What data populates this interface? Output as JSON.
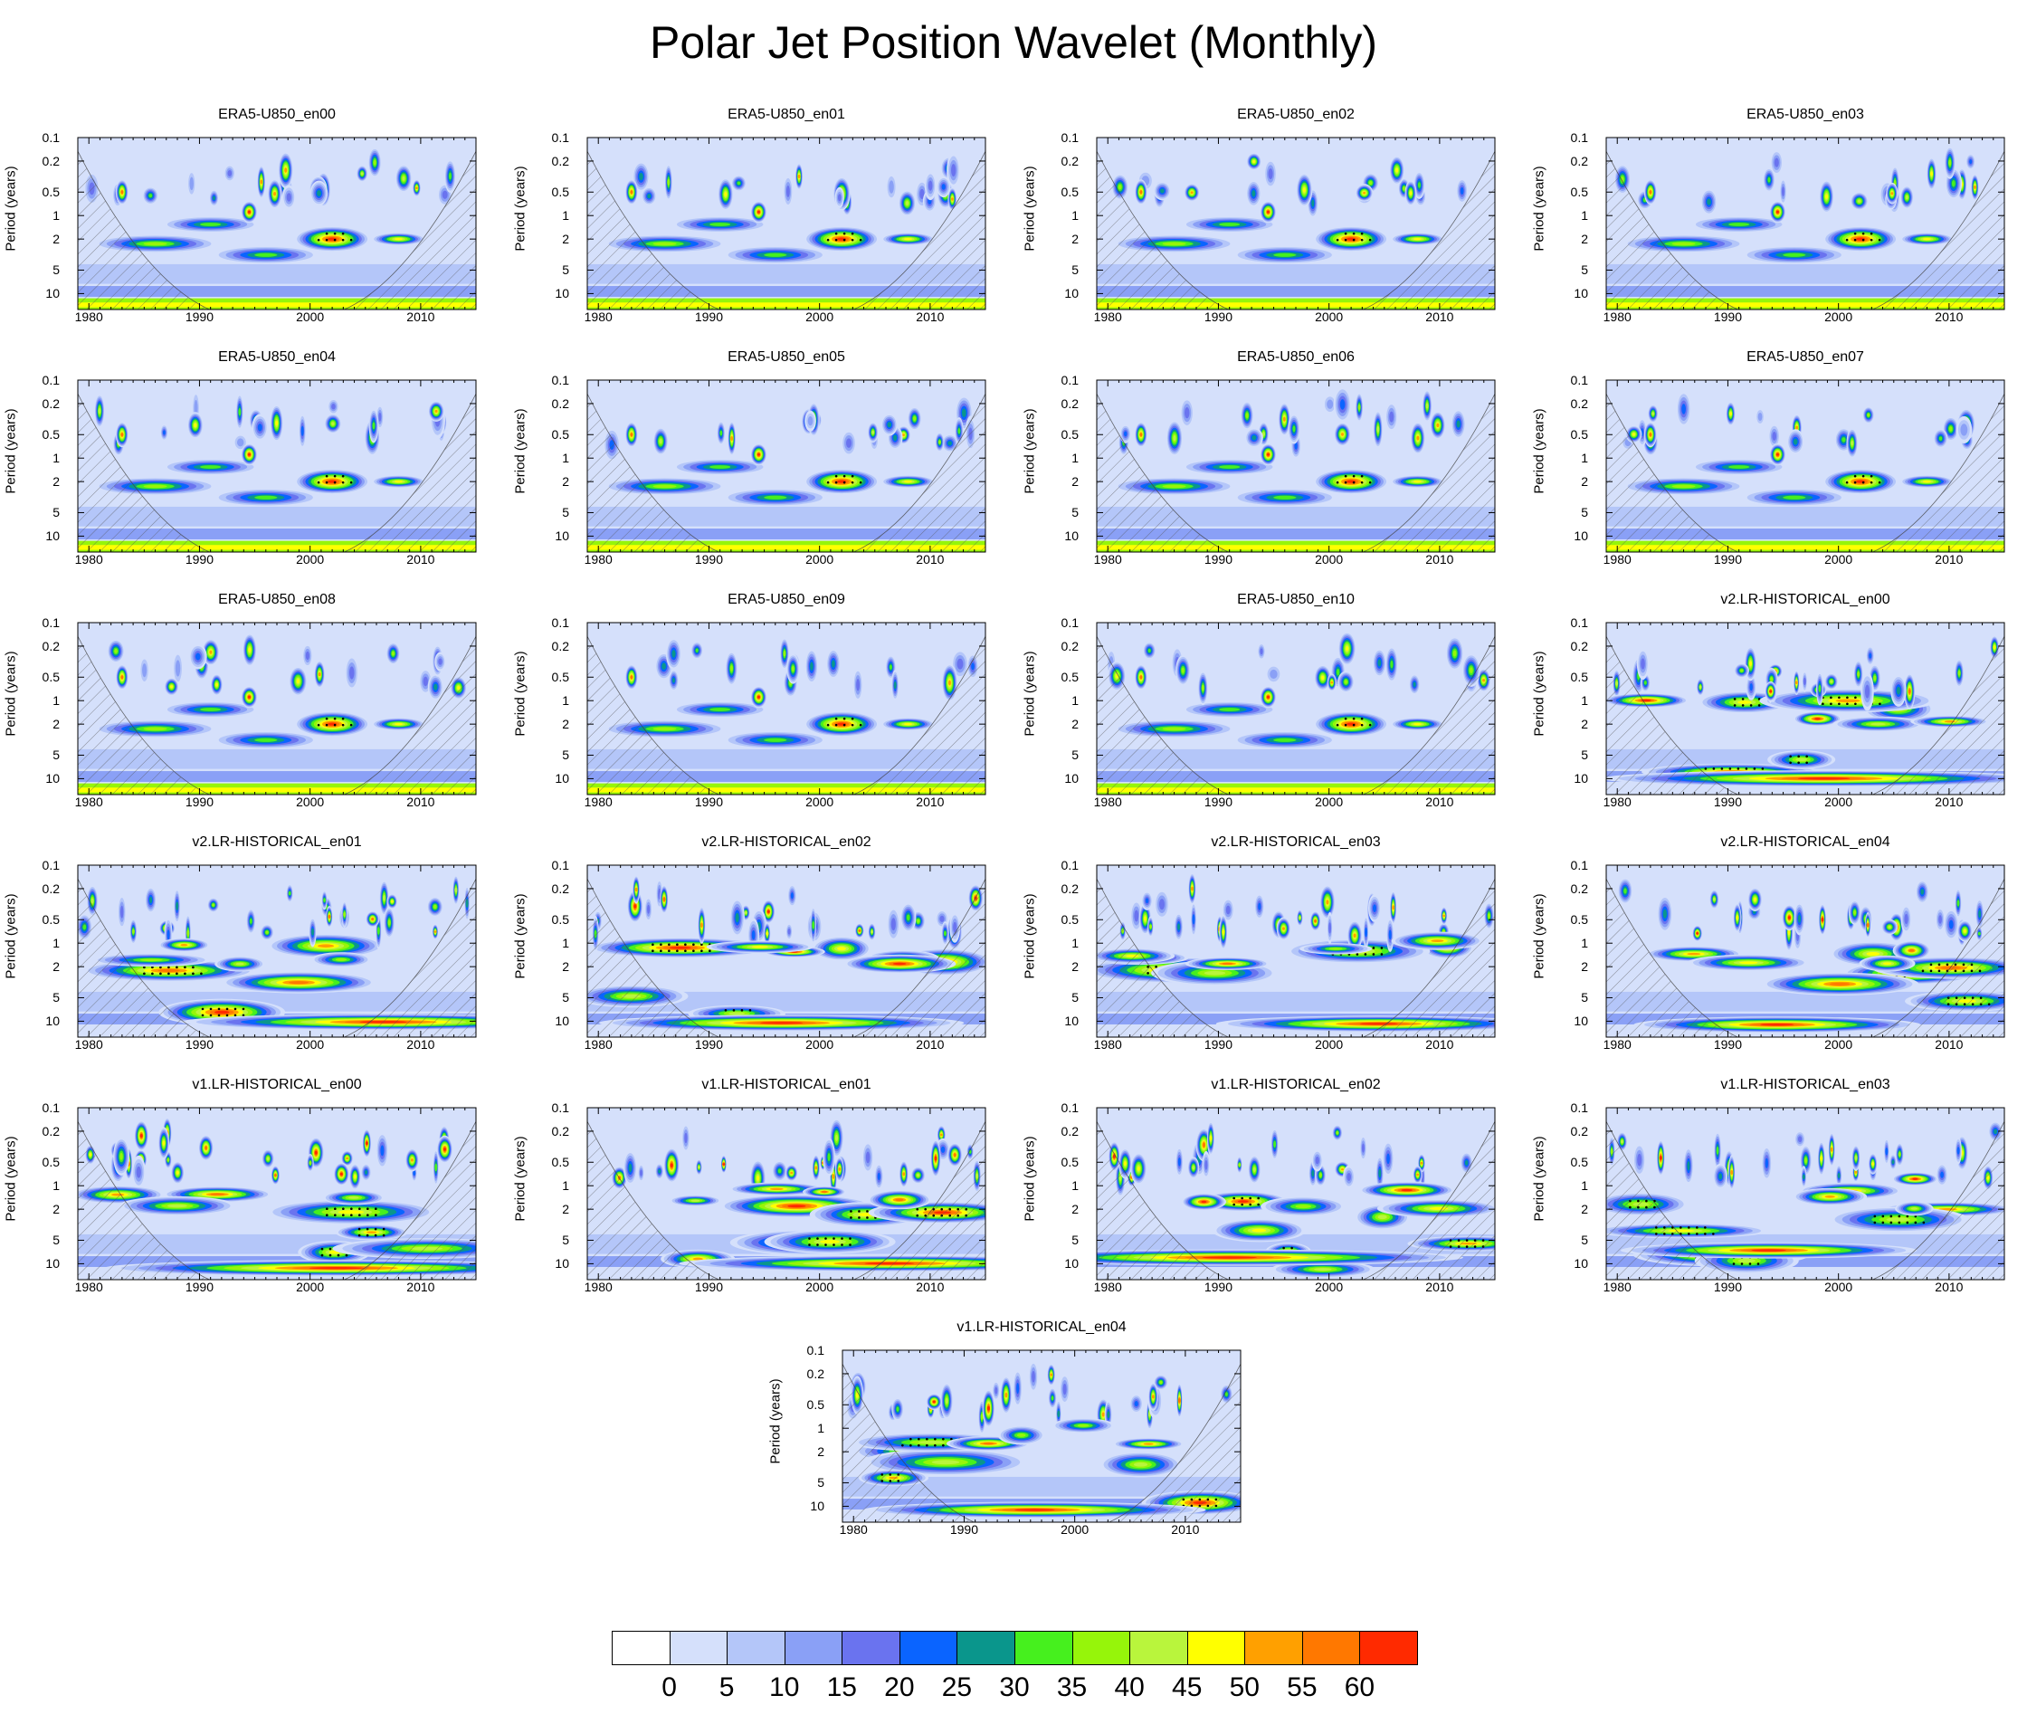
{
  "title": "Polar Jet Position Wavelet (Monthly)",
  "y_axis_label": "Period (years)",
  "y_ticks": [
    "0.1",
    "0.2",
    "0.5",
    "1",
    "2",
    "5",
    "10"
  ],
  "x_ticks": [
    "1980",
    "1990",
    "2000",
    "2010"
  ],
  "colorbar": {
    "labels": [
      "0",
      "5",
      "10",
      "15",
      "20",
      "25",
      "30",
      "35",
      "40",
      "45",
      "50",
      "55",
      "60"
    ],
    "colors": [
      "#ffffff",
      "#d5e0fb",
      "#b4c6f9",
      "#8aa0f6",
      "#6a73ef",
      "#0a64ff",
      "#0a968c",
      "#46f01e",
      "#96f50a",
      "#b9f53c",
      "#ffff00",
      "#ffa000",
      "#ff7800",
      "#ff2a00"
    ]
  },
  "chart_data": [
    {
      "type": "heatmap",
      "title": "ERA5-U850_en00",
      "family": "era5",
      "variant": 0,
      "ylabel": "Period (years)",
      "xlim": [
        1979,
        2015
      ],
      "ylim": [
        0.1,
        16
      ],
      "y_scale": "log"
    },
    {
      "type": "heatmap",
      "title": "ERA5-U850_en01",
      "family": "era5",
      "variant": 1,
      "ylabel": "Period (years)",
      "xlim": [
        1979,
        2015
      ],
      "ylim": [
        0.1,
        16
      ],
      "y_scale": "log"
    },
    {
      "type": "heatmap",
      "title": "ERA5-U850_en02",
      "family": "era5",
      "variant": 2,
      "ylabel": "Period (years)",
      "xlim": [
        1979,
        2015
      ],
      "ylim": [
        0.1,
        16
      ],
      "y_scale": "log"
    },
    {
      "type": "heatmap",
      "title": "ERA5-U850_en03",
      "family": "era5",
      "variant": 3,
      "ylabel": "Period (years)",
      "xlim": [
        1979,
        2015
      ],
      "ylim": [
        0.1,
        16
      ],
      "y_scale": "log"
    },
    {
      "type": "heatmap",
      "title": "ERA5-U850_en04",
      "family": "era5",
      "variant": 4,
      "ylabel": "Period (years)",
      "xlim": [
        1979,
        2015
      ],
      "ylim": [
        0.1,
        16
      ],
      "y_scale": "log"
    },
    {
      "type": "heatmap",
      "title": "ERA5-U850_en05",
      "family": "era5",
      "variant": 5,
      "ylabel": "Period (years)",
      "xlim": [
        1979,
        2015
      ],
      "ylim": [
        0.1,
        16
      ],
      "y_scale": "log"
    },
    {
      "type": "heatmap",
      "title": "ERA5-U850_en06",
      "family": "era5",
      "variant": 6,
      "ylabel": "Period (years)",
      "xlim": [
        1979,
        2015
      ],
      "ylim": [
        0.1,
        16
      ],
      "y_scale": "log"
    },
    {
      "type": "heatmap",
      "title": "ERA5-U850_en07",
      "family": "era5",
      "variant": 7,
      "ylabel": "Period (years)",
      "xlim": [
        1979,
        2015
      ],
      "ylim": [
        0.1,
        16
      ],
      "y_scale": "log"
    },
    {
      "type": "heatmap",
      "title": "ERA5-U850_en08",
      "family": "era5",
      "variant": 8,
      "ylabel": "Period (years)",
      "xlim": [
        1979,
        2015
      ],
      "ylim": [
        0.1,
        16
      ],
      "y_scale": "log"
    },
    {
      "type": "heatmap",
      "title": "ERA5-U850_en09",
      "family": "era5",
      "variant": 9,
      "ylabel": "Period (years)",
      "xlim": [
        1979,
        2015
      ],
      "ylim": [
        0.1,
        16
      ],
      "y_scale": "log"
    },
    {
      "type": "heatmap",
      "title": "ERA5-U850_en10",
      "family": "era5",
      "variant": 10,
      "ylabel": "Period (years)",
      "xlim": [
        1979,
        2015
      ],
      "ylim": [
        0.1,
        16
      ],
      "y_scale": "log"
    },
    {
      "type": "heatmap",
      "title": "v2.LR-HISTORICAL_en00",
      "family": "v2",
      "variant": 0,
      "ylabel": "Period (years)",
      "xlim": [
        1979,
        2015
      ],
      "ylim": [
        0.1,
        16
      ],
      "y_scale": "log"
    },
    {
      "type": "heatmap",
      "title": "v2.LR-HISTORICAL_en01",
      "family": "v2",
      "variant": 1,
      "ylabel": "Period (years)",
      "xlim": [
        1979,
        2015
      ],
      "ylim": [
        0.1,
        16
      ],
      "y_scale": "log"
    },
    {
      "type": "heatmap",
      "title": "v2.LR-HISTORICAL_en02",
      "family": "v2",
      "variant": 2,
      "ylabel": "Period (years)",
      "xlim": [
        1979,
        2015
      ],
      "ylim": [
        0.1,
        16
      ],
      "y_scale": "log"
    },
    {
      "type": "heatmap",
      "title": "v2.LR-HISTORICAL_en03",
      "family": "v2",
      "variant": 3,
      "ylabel": "Period (years)",
      "xlim": [
        1979,
        2015
      ],
      "ylim": [
        0.1,
        16
      ],
      "y_scale": "log"
    },
    {
      "type": "heatmap",
      "title": "v2.LR-HISTORICAL_en04",
      "family": "v2",
      "variant": 4,
      "ylabel": "Period (years)",
      "xlim": [
        1979,
        2015
      ],
      "ylim": [
        0.1,
        16
      ],
      "y_scale": "log"
    },
    {
      "type": "heatmap",
      "title": "v1.LR-HISTORICAL_en00",
      "family": "v1",
      "variant": 0,
      "ylabel": "Period (years)",
      "xlim": [
        1979,
        2015
      ],
      "ylim": [
        0.1,
        16
      ],
      "y_scale": "log"
    },
    {
      "type": "heatmap",
      "title": "v1.LR-HISTORICAL_en01",
      "family": "v1",
      "variant": 1,
      "ylabel": "Period (years)",
      "xlim": [
        1979,
        2015
      ],
      "ylim": [
        0.1,
        16
      ],
      "y_scale": "log"
    },
    {
      "type": "heatmap",
      "title": "v1.LR-HISTORICAL_en02",
      "family": "v1",
      "variant": 2,
      "ylabel": "Period (years)",
      "xlim": [
        1979,
        2015
      ],
      "ylim": [
        0.1,
        16
      ],
      "y_scale": "log"
    },
    {
      "type": "heatmap",
      "title": "v1.LR-HISTORICAL_en03",
      "family": "v1",
      "variant": 3,
      "ylabel": "Period (years)",
      "xlim": [
        1979,
        2015
      ],
      "ylim": [
        0.1,
        16
      ],
      "y_scale": "log"
    },
    {
      "type": "heatmap",
      "title": "v1.LR-HISTORICAL_en04",
      "family": "v1",
      "variant": 4,
      "ylabel": "Period (years)",
      "xlim": [
        1979,
        2015
      ],
      "ylim": [
        0.1,
        16
      ],
      "y_scale": "log"
    }
  ]
}
